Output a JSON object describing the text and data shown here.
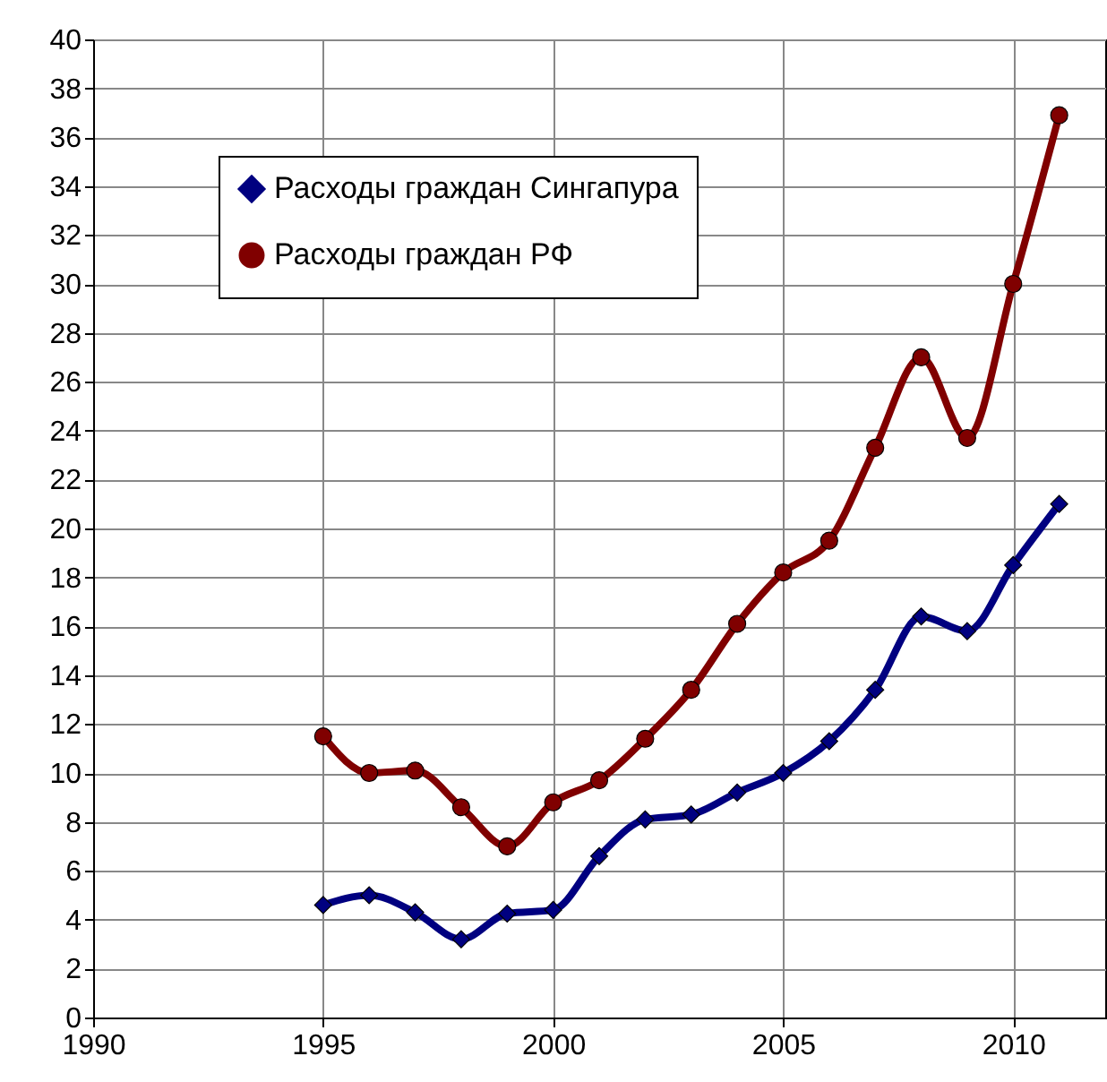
{
  "chart_data": {
    "type": "line",
    "x": [
      1995,
      1996,
      1997,
      1998,
      1999,
      2000,
      2001,
      2002,
      2003,
      2004,
      2005,
      2006,
      2007,
      2008,
      2009,
      2010,
      2011
    ],
    "series": [
      {
        "name": "Расходы граждан Сингапура",
        "color": "#000080",
        "marker": "diamond",
        "values": [
          4.6,
          5.0,
          4.3,
          3.2,
          4.25,
          4.4,
          6.6,
          8.1,
          8.3,
          9.2,
          10.0,
          11.3,
          13.4,
          16.4,
          15.8,
          18.5,
          21.0
        ]
      },
      {
        "name": "Расходы граждан РФ",
        "color": "#800000",
        "marker": "circle",
        "values": [
          11.5,
          10.0,
          10.1,
          8.6,
          7.0,
          8.8,
          9.7,
          11.4,
          13.4,
          16.1,
          18.2,
          19.5,
          23.3,
          27.0,
          23.7,
          30.0,
          36.9
        ]
      }
    ],
    "xlim": [
      1990,
      2012
    ],
    "xticks": [
      1990,
      1995,
      2000,
      2005,
      2010
    ],
    "ylim": [
      0,
      40
    ],
    "yticks": [
      0,
      2,
      4,
      6,
      8,
      10,
      12,
      14,
      16,
      18,
      20,
      22,
      24,
      26,
      28,
      30,
      32,
      34,
      36,
      38,
      40
    ],
    "grid": true,
    "legend": "top left",
    "line_style": "solid"
  }
}
